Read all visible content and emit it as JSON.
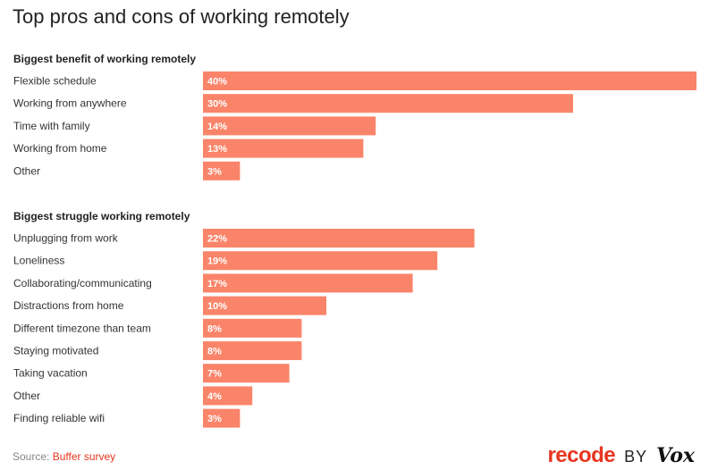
{
  "header": {
    "title": "Top pros and cons of working remotely"
  },
  "colors": {
    "bar": "#fa8469",
    "bar_label": "#ffffff",
    "heading": "#222222",
    "category": "#333333"
  },
  "chart_data": [
    {
      "type": "bar",
      "orientation": "horizontal",
      "title": "Biggest benefit of working remotely",
      "categories": [
        "Flexible schedule",
        "Working from anywhere",
        "Time with family",
        "Working from home",
        "Other"
      ],
      "values": [
        40,
        30,
        14,
        13,
        3
      ],
      "value_labels": [
        "40%",
        "30%",
        "14%",
        "13%",
        "3%"
      ],
      "unit": "%"
    },
    {
      "type": "bar",
      "orientation": "horizontal",
      "title": "Biggest struggle working remotely",
      "categories": [
        "Unplugging from work",
        "Loneliness",
        "Collaborating/communicating",
        "Distractions from home",
        "Different timezone than team",
        "Staying motivated",
        "Taking vacation",
        "Other",
        "Finding reliable wifi"
      ],
      "values": [
        22,
        19,
        17,
        10,
        8,
        8,
        7,
        4,
        3
      ],
      "value_labels": [
        "22%",
        "19%",
        "17%",
        "10%",
        "8%",
        "8%",
        "7%",
        "4%",
        "3%"
      ],
      "unit": "%"
    }
  ],
  "footer": {
    "source_prefix": "Source: ",
    "source_link": "Buffer survey",
    "brand_recode": "recode",
    "brand_by": "BY",
    "brand_vox": "Vox"
  }
}
